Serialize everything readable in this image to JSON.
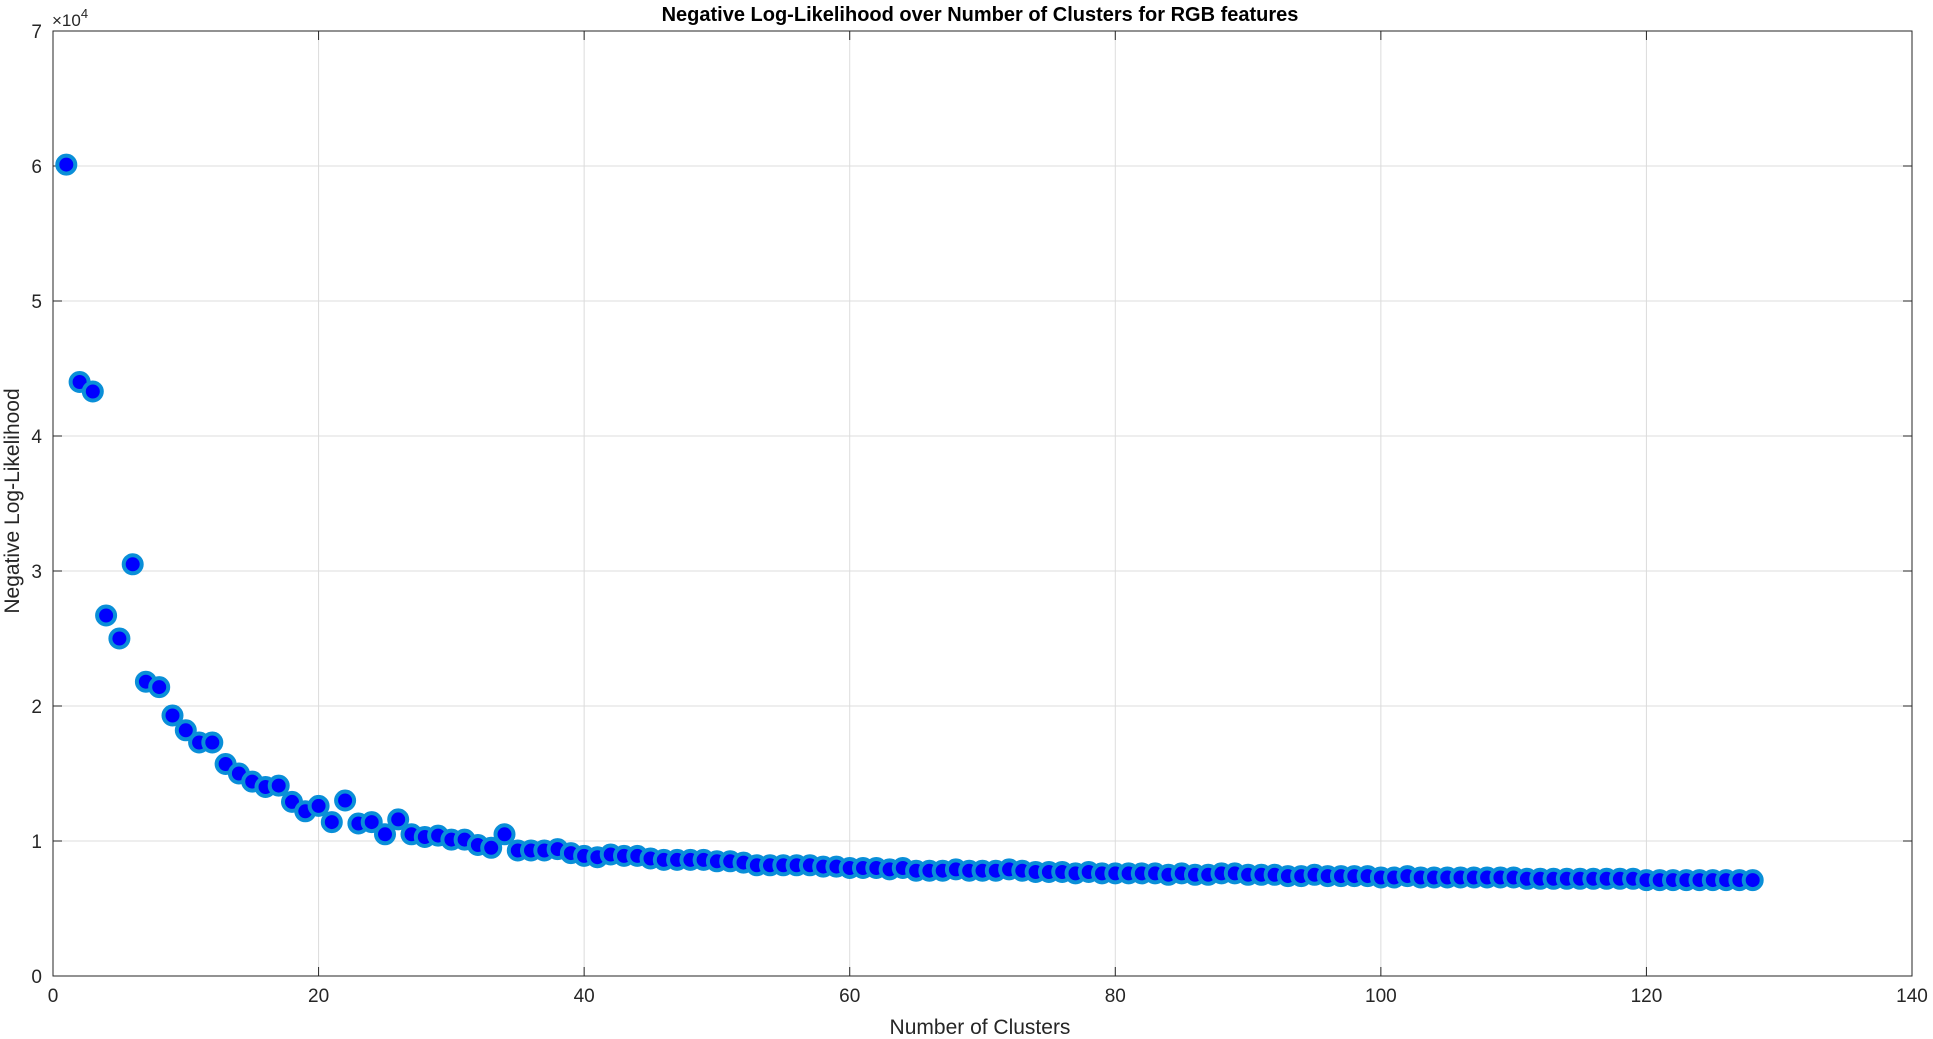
{
  "chart_data": {
    "type": "scatter",
    "title": "Negative Log-Likelihood over Number of Clusters for RGB features",
    "xlabel": "Number of Clusters",
    "ylabel": "Negative Log-Likelihood",
    "y_exponent_label": "×10",
    "y_exponent_power": "4",
    "xlim": [
      0,
      140
    ],
    "ylim": [
      0,
      70000
    ],
    "x_ticks": [
      "0",
      "20",
      "40",
      "60",
      "80",
      "100",
      "120",
      "140"
    ],
    "y_ticks": [
      "0",
      "1",
      "2",
      "3",
      "4",
      "5",
      "6",
      "7"
    ],
    "grid": true,
    "marker_face_color": "#0000ff",
    "marker_edge_color": "#0a8fd8",
    "series": [
      {
        "x": [
          1,
          2,
          3,
          4,
          5,
          6,
          7,
          8,
          9,
          10,
          11,
          12,
          13,
          14,
          15,
          16,
          17,
          18,
          19,
          20,
          21,
          22,
          23,
          24,
          25,
          26,
          27,
          28,
          29,
          30,
          31,
          32,
          33,
          34,
          35,
          36,
          37,
          38,
          39,
          40,
          41,
          42,
          43,
          44,
          45,
          46,
          47,
          48,
          49,
          50,
          51,
          52,
          53,
          54,
          55,
          56,
          57,
          58,
          59,
          60,
          61,
          62,
          63,
          64,
          65,
          66,
          67,
          68,
          69,
          70,
          71,
          72,
          73,
          74,
          75,
          76,
          77,
          78,
          79,
          80,
          81,
          82,
          83,
          84,
          85,
          86,
          87,
          88,
          89,
          90,
          91,
          92,
          93,
          94,
          95,
          96,
          97,
          98,
          99,
          100,
          101,
          102,
          103,
          104,
          105,
          106,
          107,
          108,
          109,
          110,
          111,
          112,
          113,
          114,
          115,
          116,
          117,
          118,
          119,
          120,
          121,
          122,
          123,
          124,
          125,
          126,
          127,
          128
        ],
        "y": [
          60100,
          44000,
          43300,
          26700,
          25000,
          30500,
          21800,
          21400,
          19300,
          18200,
          17300,
          17300,
          15700,
          15000,
          14400,
          14000,
          14100,
          12900,
          12200,
          12600,
          11400,
          13000,
          11300,
          11400,
          10500,
          11600,
          10500,
          10300,
          10400,
          10100,
          10100,
          9700,
          9500,
          10500,
          9300,
          9300,
          9300,
          9400,
          9100,
          8900,
          8800,
          9000,
          8900,
          8900,
          8700,
          8600,
          8600,
          8600,
          8600,
          8500,
          8500,
          8400,
          8200,
          8200,
          8200,
          8200,
          8200,
          8100,
          8100,
          8000,
          8000,
          8000,
          7900,
          8000,
          7800,
          7800,
          7800,
          7900,
          7800,
          7800,
          7800,
          7900,
          7800,
          7700,
          7700,
          7700,
          7600,
          7700,
          7600,
          7600,
          7600,
          7600,
          7600,
          7500,
          7600,
          7500,
          7500,
          7600,
          7600,
          7500,
          7500,
          7500,
          7400,
          7400,
          7500,
          7400,
          7400,
          7400,
          7400,
          7300,
          7300,
          7400,
          7300,
          7300,
          7300,
          7300,
          7300,
          7300,
          7300,
          7300,
          7200,
          7200,
          7200,
          7200,
          7200,
          7200,
          7200,
          7200,
          7200,
          7100,
          7100,
          7100,
          7100,
          7100,
          7100,
          7100,
          7100,
          7100
        ]
      }
    ]
  }
}
